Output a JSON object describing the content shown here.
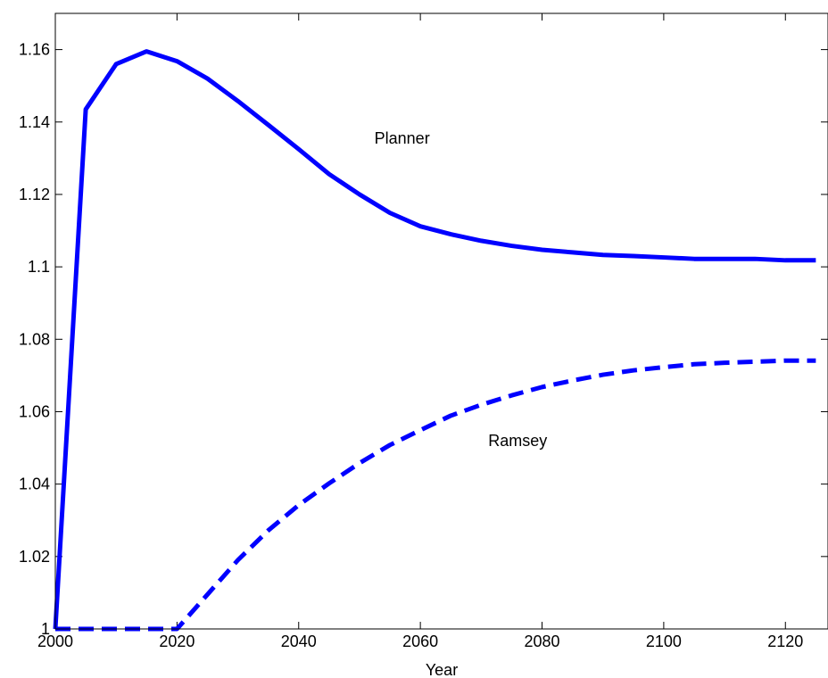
{
  "chart_data": {
    "type": "line",
    "title": "",
    "xlabel": "Year",
    "ylabel": "",
    "xlim": [
      2000,
      2127
    ],
    "ylim": [
      1.0,
      1.17
    ],
    "grid": false,
    "x_ticks": [
      2000,
      2020,
      2040,
      2060,
      2080,
      2100,
      2120
    ],
    "x_tick_labels": [
      "2000",
      "2020",
      "2040",
      "2060",
      "2080",
      "2100",
      "2120"
    ],
    "y_ticks": [
      1.0,
      1.02,
      1.04,
      1.06,
      1.08,
      1.1,
      1.12,
      1.14,
      1.16
    ],
    "y_tick_labels": [
      "1",
      "1.02",
      "1.04",
      "1.06",
      "1.08",
      "1.1",
      "1.12",
      "1.14",
      "1.16"
    ],
    "series_color": "#0000ff",
    "series": [
      {
        "style": "solid",
        "annotation": "Planner",
        "annotation_anchor": [
          2057,
          1.134
        ],
        "x": [
          2000,
          2005,
          2010,
          2015,
          2020,
          2025,
          2030,
          2035,
          2040,
          2045,
          2050,
          2055,
          2060,
          2065,
          2070,
          2075,
          2080,
          2085,
          2090,
          2095,
          2100,
          2105,
          2110,
          2115,
          2120,
          2125
        ],
        "values": [
          1.0,
          1.1435,
          1.156,
          1.1595,
          1.1568,
          1.152,
          1.1458,
          1.1392,
          1.1325,
          1.1256,
          1.12,
          1.1149,
          1.1112,
          1.109,
          1.1072,
          1.1058,
          1.1047,
          1.104,
          1.1033,
          1.103,
          1.1026,
          1.1022,
          1.1022,
          1.1022,
          1.1018,
          1.1018
        ]
      },
      {
        "style": "dashed",
        "annotation": "Ramsey",
        "annotation_anchor": [
          2076,
          1.0505
        ],
        "x": [
          2000,
          2005,
          2010,
          2015,
          2020,
          2025,
          2030,
          2035,
          2040,
          2045,
          2050,
          2055,
          2060,
          2065,
          2070,
          2075,
          2080,
          2085,
          2090,
          2095,
          2100,
          2105,
          2110,
          2115,
          2120,
          2125
        ],
        "values": [
          1.0,
          1.0,
          1.0,
          1.0,
          1.0,
          1.0095,
          1.019,
          1.0272,
          1.0342,
          1.0402,
          1.0458,
          1.0508,
          1.0549,
          1.0589,
          1.0619,
          1.0645,
          1.0668,
          1.0686,
          1.0702,
          1.0714,
          1.0723,
          1.0731,
          1.0735,
          1.0738,
          1.0741,
          1.0741
        ]
      }
    ]
  }
}
